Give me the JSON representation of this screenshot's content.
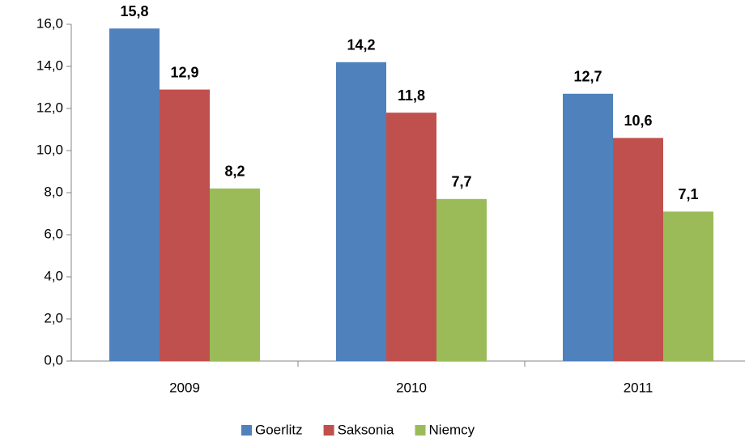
{
  "chart_data": {
    "type": "bar",
    "categories": [
      "2009",
      "2010",
      "2011"
    ],
    "series": [
      {
        "name": "Goerlitz",
        "color": "#4f81bd",
        "values": [
          15.8,
          14.2,
          12.7
        ],
        "value_labels": [
          "15,8",
          "14,2",
          "12,7"
        ]
      },
      {
        "name": "Saksonia",
        "color": "#c0504d",
        "values": [
          12.9,
          11.8,
          10.6
        ],
        "value_labels": [
          "12,9",
          "11,8",
          "10,6"
        ]
      },
      {
        "name": "Niemcy",
        "color": "#9bbb59",
        "values": [
          8.2,
          7.7,
          7.1
        ],
        "value_labels": [
          "8,2",
          "7,7",
          "7,1"
        ]
      }
    ],
    "ylim": [
      0,
      16
    ],
    "yticks": [
      {
        "value": 0,
        "label": "0,0"
      },
      {
        "value": 2,
        "label": "2,0"
      },
      {
        "value": 4,
        "label": "4,0"
      },
      {
        "value": 6,
        "label": "6,0"
      },
      {
        "value": 8,
        "label": "8,0"
      },
      {
        "value": 10,
        "label": "10,0"
      },
      {
        "value": 12,
        "label": "12,0"
      },
      {
        "value": 14,
        "label": "14,0"
      },
      {
        "value": 16,
        "label": "16,0"
      }
    ],
    "legend": "bottom"
  }
}
